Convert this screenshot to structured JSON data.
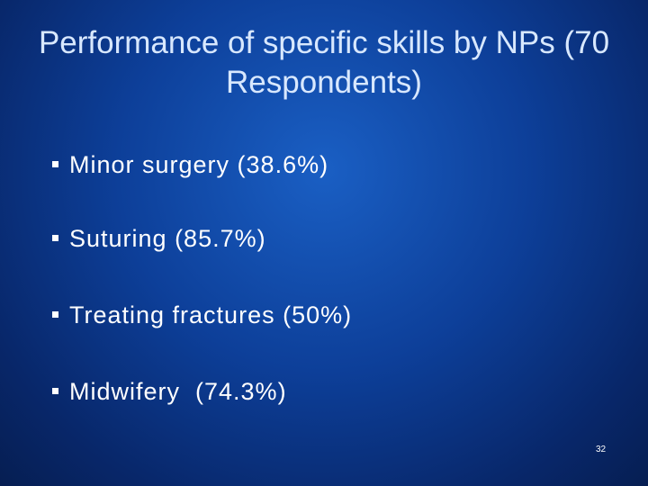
{
  "title": "Performance of specific skills by NPs (70 Respondents)",
  "bullets": [
    "Minor surgery (38.6%)",
    "Suturing (85.7%)",
    "Treating fractures (50%)",
    "Midwifery  (74.3%)"
  ],
  "page_number": "32"
}
